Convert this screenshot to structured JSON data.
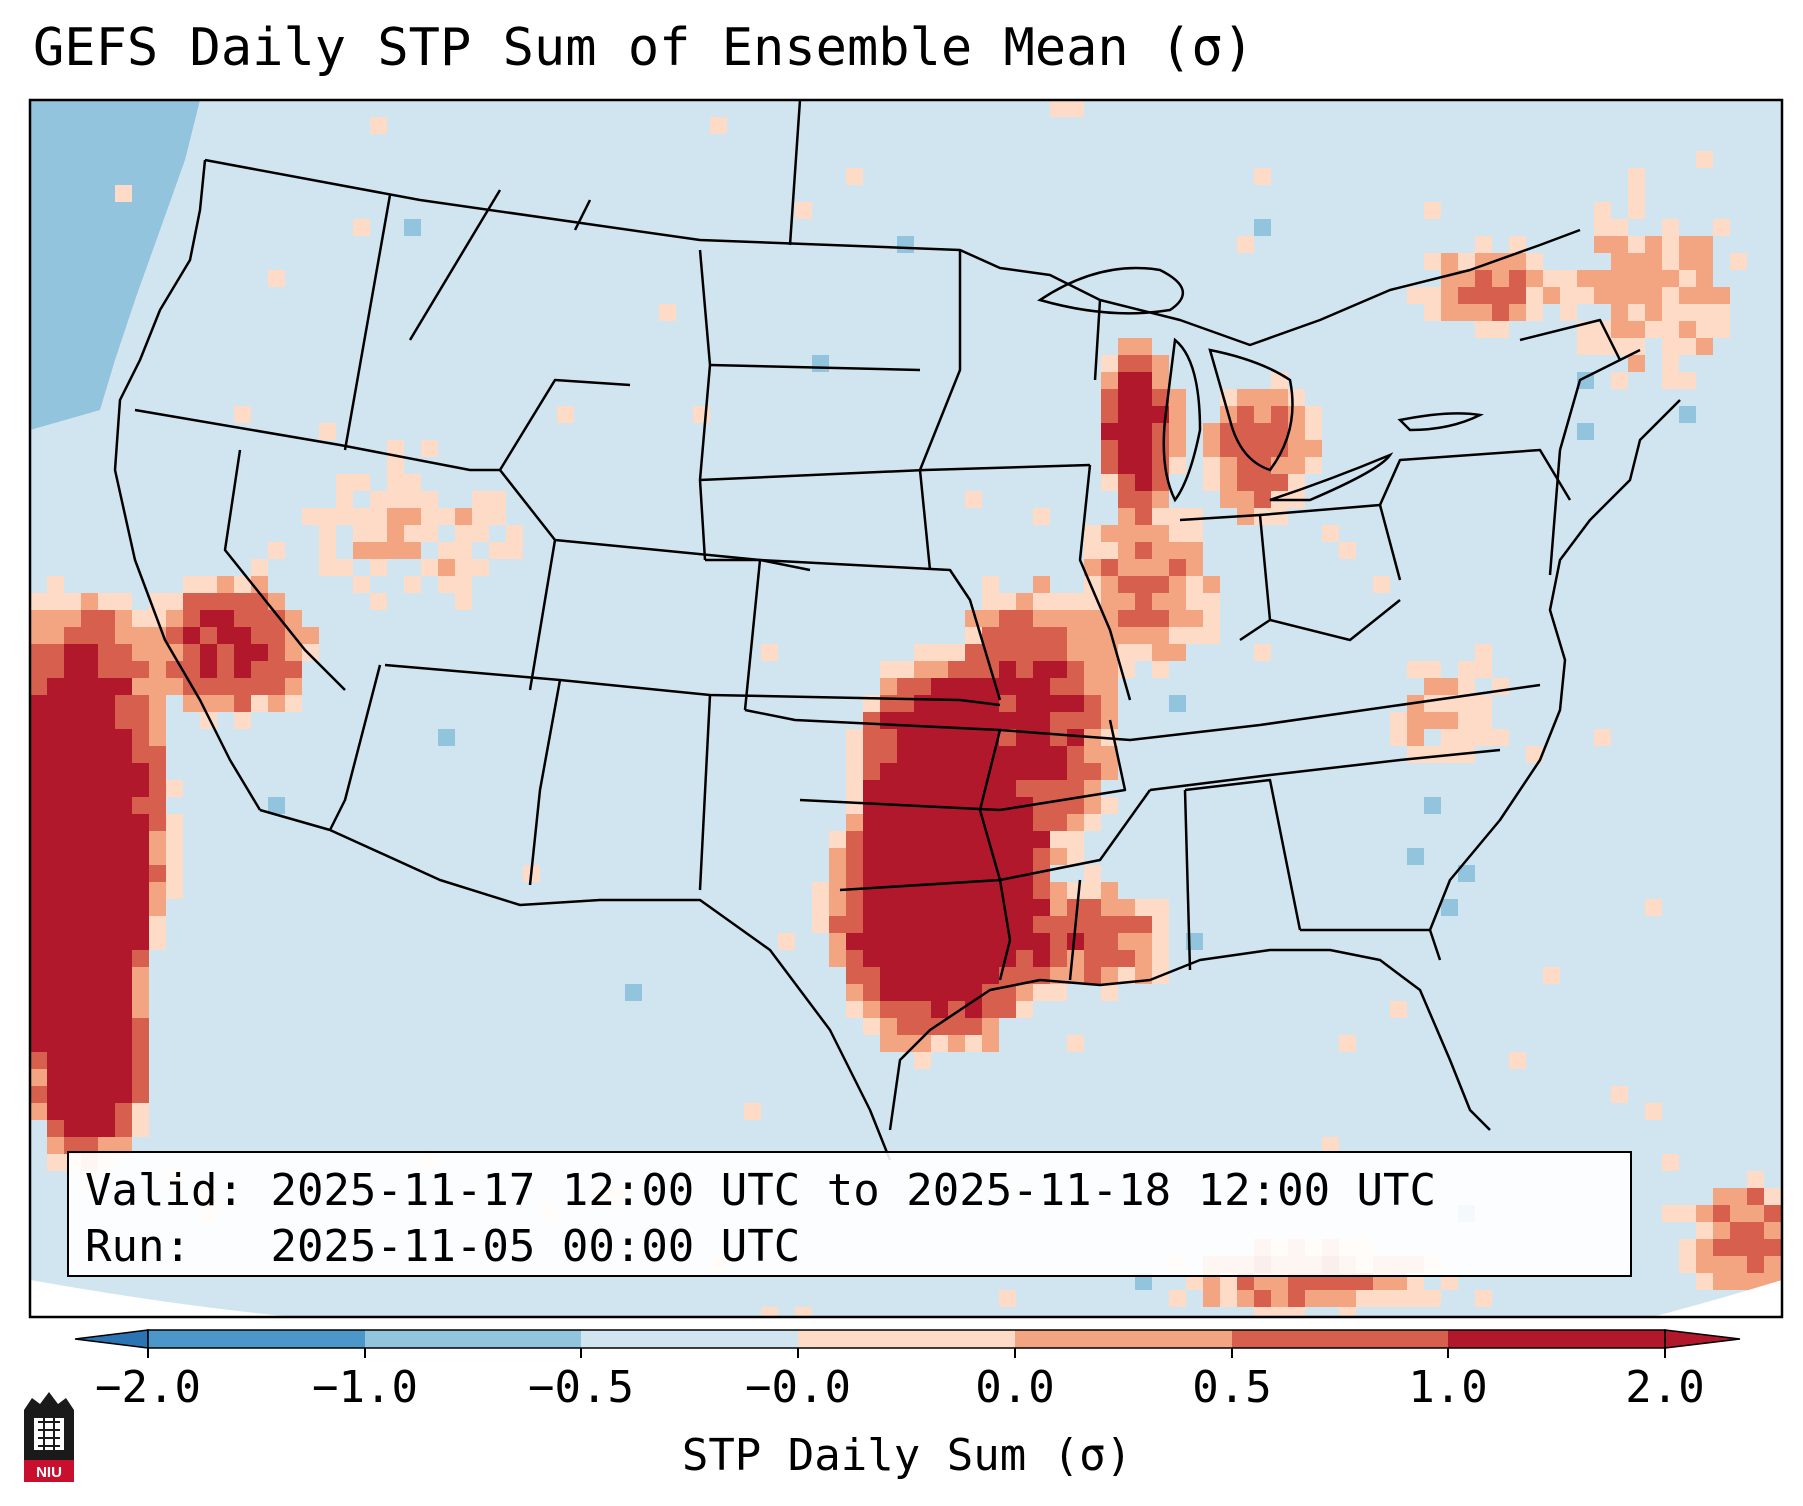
{
  "title": "GEFS Daily STP Sum of Ensemble Mean (σ)",
  "info": {
    "valid_label": "Valid:",
    "valid_value": "2025-11-17 12:00 UTC to 2025-11-18 12:00 UTC",
    "run_label": "Run:",
    "run_value": "2025-11-05 00:00 UTC"
  },
  "colorbar": {
    "label": "STP Daily Sum (σ)",
    "ticks": [
      "−2.0",
      "−1.0",
      "−0.5",
      "−0.0",
      "0.0",
      "0.5",
      "1.0",
      "2.0"
    ],
    "colors": [
      "#2b74b4",
      "#4b97c9",
      "#93c4de",
      "#d1e5f0",
      "#fddbc7",
      "#f3a481",
      "#d6604d",
      "#b2182b"
    ]
  },
  "logo": {
    "text": "NIU"
  },
  "map": {
    "background_color": "#d1e5f0",
    "hotspots": [
      "Southern Plains / Texas",
      "Mid-Mississippi Valley",
      "Lower Michigan",
      "Pacific off California"
    ]
  }
}
